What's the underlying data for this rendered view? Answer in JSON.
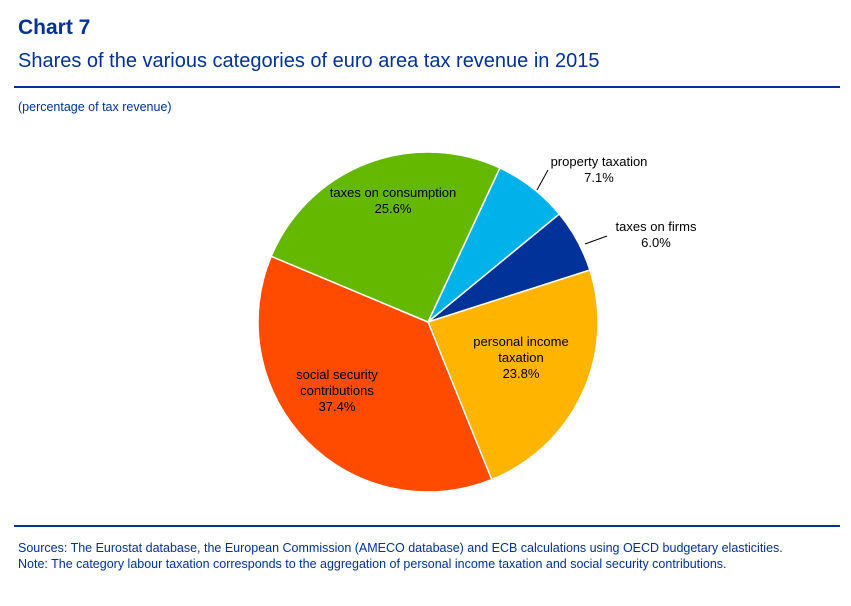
{
  "header": {
    "chart_number": "Chart 7",
    "title": "Shares of the various categories of euro area tax revenue in 2015",
    "unit": "(percentage of tax revenue)"
  },
  "chart_data": {
    "type": "pie",
    "title": "Shares of the various categories of euro area tax revenue in 2015",
    "unit": "percentage of tax revenue",
    "slices": [
      {
        "name": "property taxation",
        "value": 7.1,
        "label": "7.1%",
        "color": "#00b1ea",
        "label_lines": [
          "property taxation"
        ]
      },
      {
        "name": "taxes on firms",
        "value": 6.0,
        "label": "6.0%",
        "color": "#003299",
        "label_lines": [
          "taxes on firms"
        ]
      },
      {
        "name": "personal income taxation",
        "value": 23.8,
        "label": "23.8%",
        "color": "#ffb400",
        "label_lines": [
          "personal income",
          "taxation"
        ]
      },
      {
        "name": "social security contributions",
        "value": 37.4,
        "label": "37.4%",
        "color": "#ff4b00",
        "label_lines": [
          "social security",
          "contributions"
        ]
      },
      {
        "name": "taxes on consumption",
        "value": 25.6,
        "label": "25.6%",
        "color": "#65b800",
        "label_lines": [
          "taxes on consumption"
        ]
      }
    ]
  },
  "footnotes": {
    "sources": "Sources: The Eurostat database, the European Commission (AMECO database) and ECB calculations using OECD budgetary elasticities.",
    "note": "Note: The category labour taxation corresponds to the aggregation of personal income taxation and social security contributions."
  }
}
